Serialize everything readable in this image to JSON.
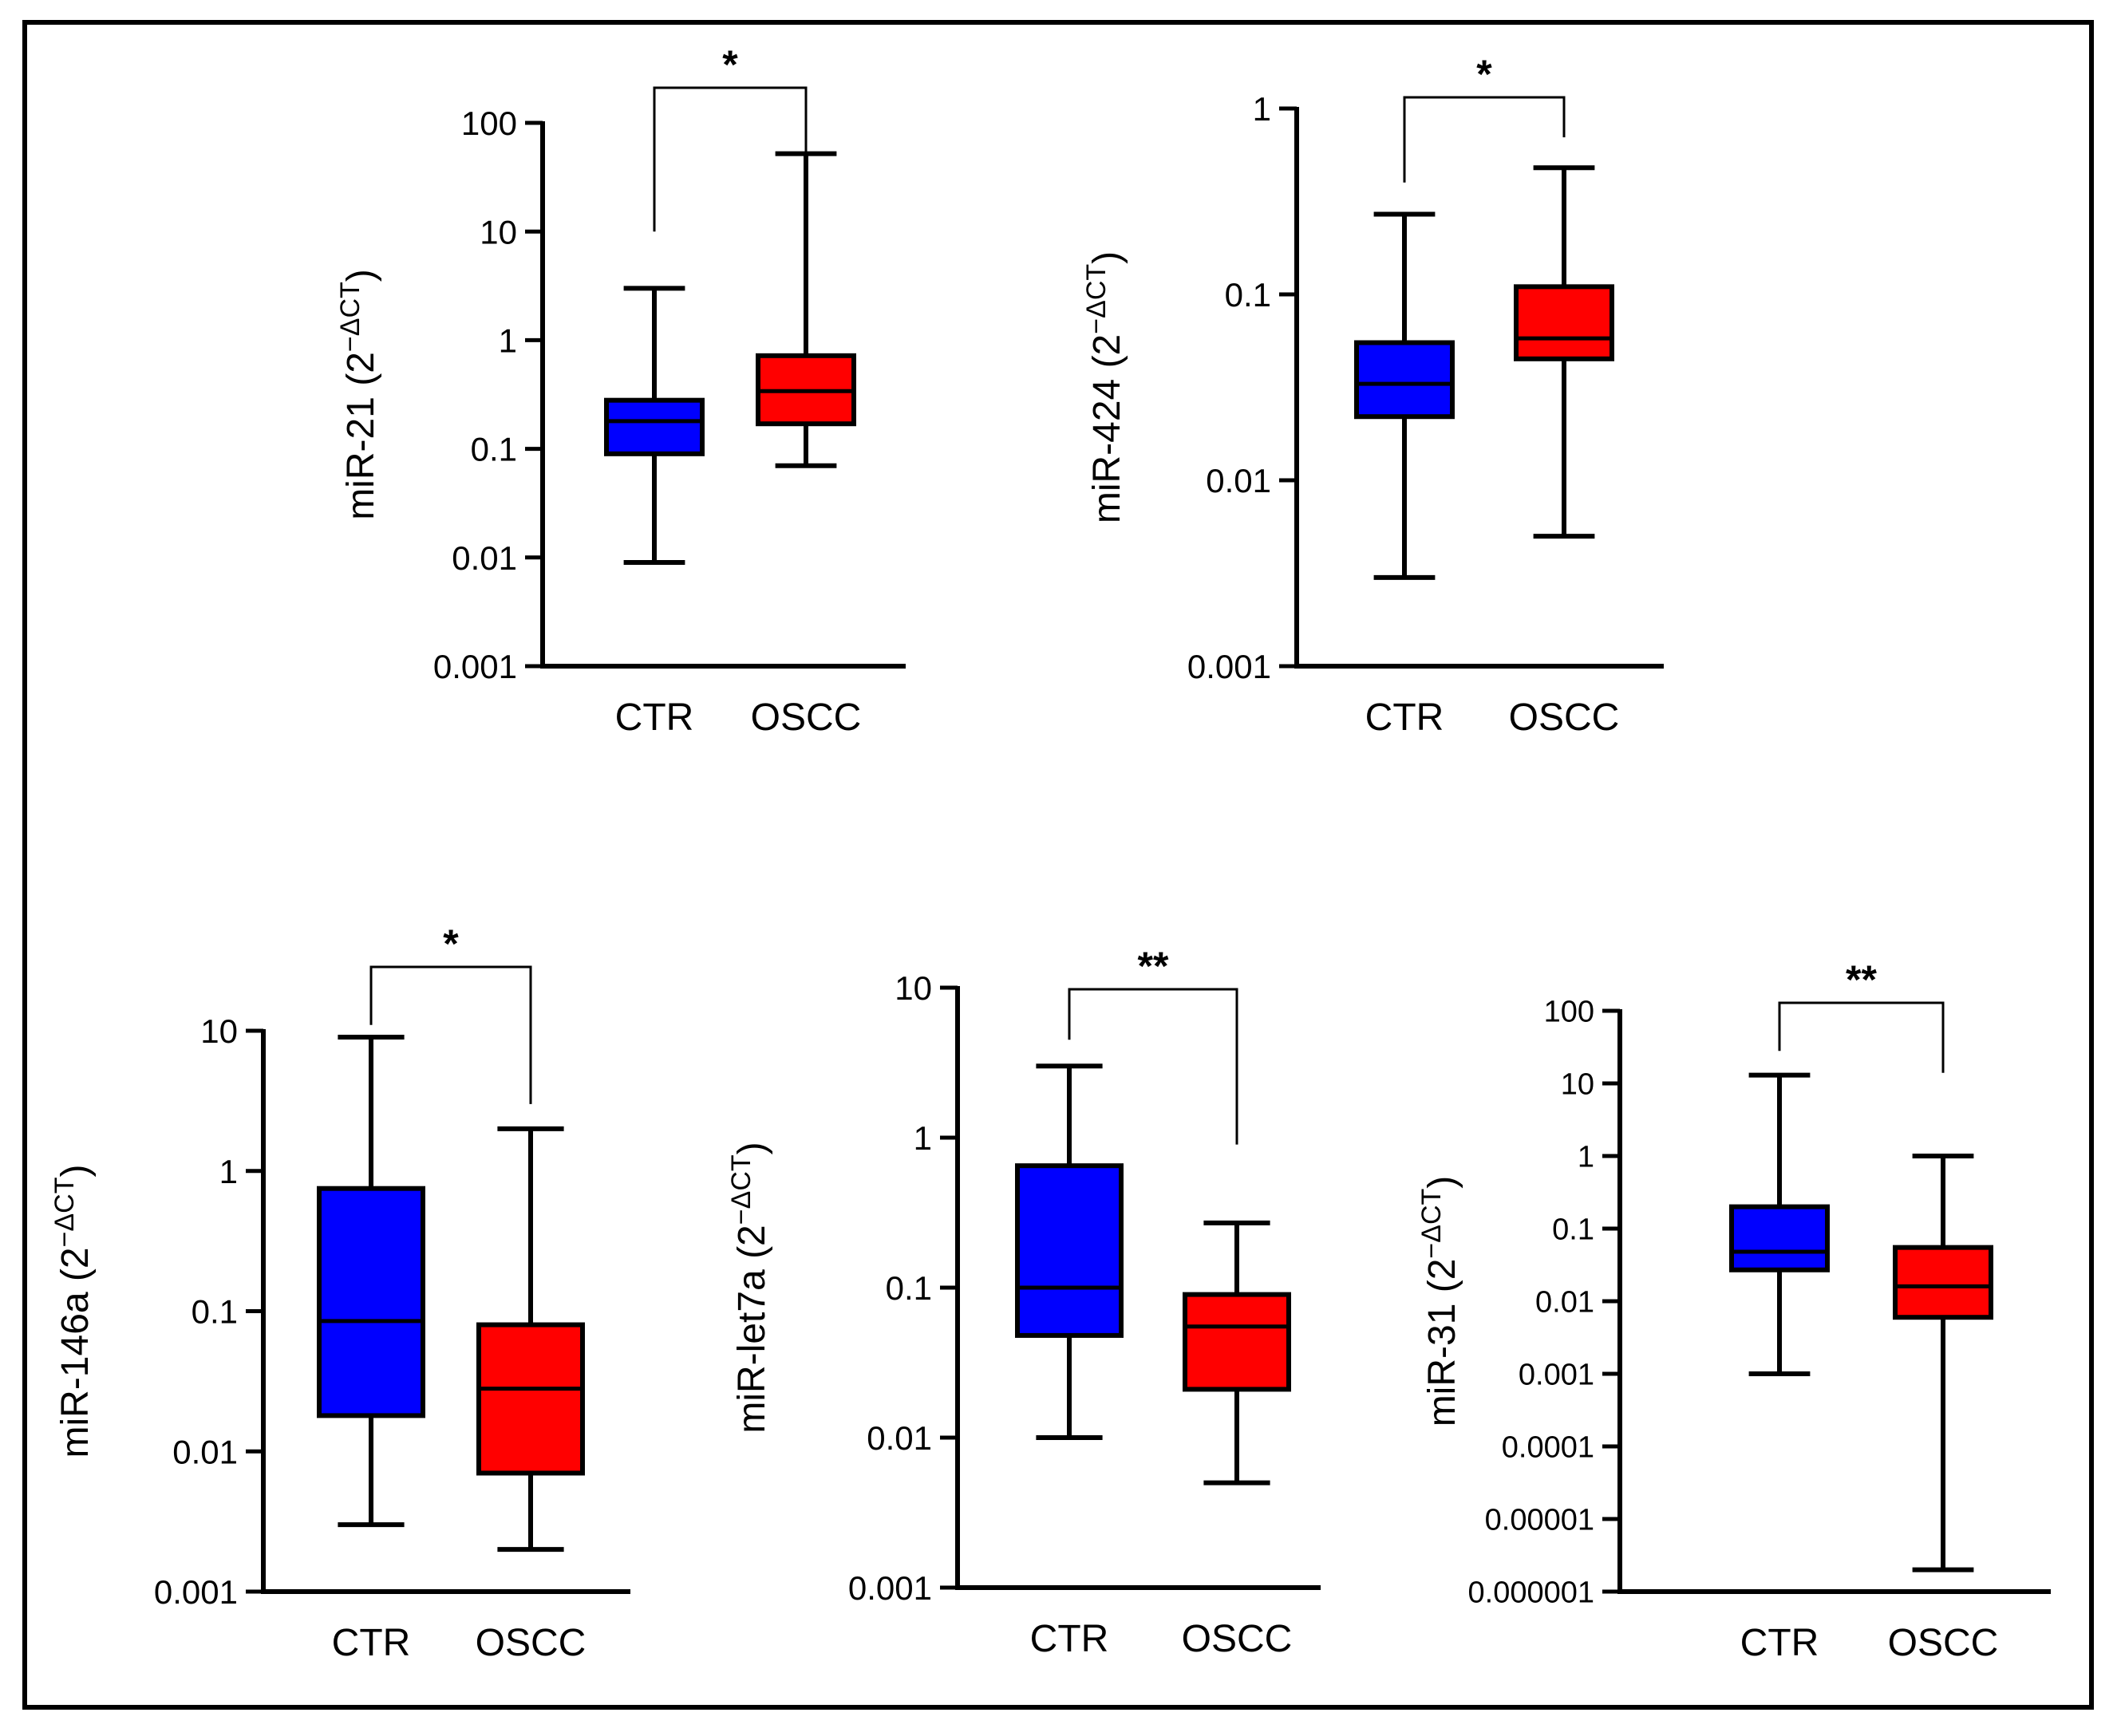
{
  "figure": {
    "groups": [
      "CTR",
      "OSCC"
    ],
    "colors": {
      "CTR": "#0000ff",
      "OSCC": "#ff0000",
      "axis": "#000000"
    },
    "ylabel_suffix": "(2",
    "ylabel_sup": "−ΔCT",
    "ylabel_close": ")"
  },
  "chart_data": [
    {
      "type": "boxplot",
      "scale": "log10",
      "ylabel_main": "miR-21",
      "ylim": [
        0.001,
        100
      ],
      "ticks": [
        0.001,
        0.01,
        0.1,
        1,
        10,
        100
      ],
      "tick_labels": [
        "0.001",
        "0.01",
        "0.1",
        "1",
        "10",
        "100"
      ],
      "categories": [
        "CTR",
        "OSCC"
      ],
      "boxes": [
        {
          "group": "CTR",
          "min": 0.009,
          "q1": 0.09,
          "median": 0.18,
          "q3": 0.28,
          "max": 3.0
        },
        {
          "group": "OSCC",
          "min": 0.07,
          "q1": 0.17,
          "median": 0.34,
          "q3": 0.72,
          "max": 52
        }
      ],
      "significance": "*",
      "bracket_bottom": [
        10,
        4
      ]
    },
    {
      "type": "boxplot",
      "scale": "log10",
      "ylabel_main": "miR-424",
      "ylim": [
        0.001,
        1
      ],
      "ticks": [
        0.001,
        0.01,
        0.1,
        1
      ],
      "tick_labels": [
        "0.001",
        "0.01",
        "0.1",
        "1"
      ],
      "categories": [
        "CTR",
        "OSCC"
      ],
      "boxes": [
        {
          "group": "CTR",
          "min": 0.003,
          "q1": 0.022,
          "median": 0.033,
          "q3": 0.055,
          "max": 0.27
        },
        {
          "group": "OSCC",
          "min": 0.005,
          "q1": 0.045,
          "median": 0.058,
          "q3": 0.11,
          "max": 0.48
        }
      ],
      "significance": "*",
      "bracket_bottom": [
        0.4,
        0.7
      ]
    },
    {
      "type": "boxplot",
      "scale": "log10",
      "ylabel_main": "miR-146a",
      "ylim": [
        0.001,
        10
      ],
      "ticks": [
        0.001,
        0.01,
        0.1,
        1,
        10
      ],
      "tick_labels": [
        "0.001",
        "0.01",
        "0.1",
        "1",
        "10"
      ],
      "categories": [
        "CTR",
        "OSCC"
      ],
      "boxes": [
        {
          "group": "CTR",
          "min": 0.003,
          "q1": 0.018,
          "median": 0.085,
          "q3": 0.75,
          "max": 9.0
        },
        {
          "group": "OSCC",
          "min": 0.002,
          "q1": 0.007,
          "median": 0.028,
          "q3": 0.08,
          "max": 2.0
        }
      ],
      "significance": "*",
      "bracket_bottom": [
        11,
        3.0
      ]
    },
    {
      "type": "boxplot",
      "scale": "log10",
      "ylabel_main": "miR-let7a",
      "ylim": [
        0.001,
        10
      ],
      "ticks": [
        0.001,
        0.01,
        0.1,
        1,
        10
      ],
      "tick_labels": [
        "0.001",
        "0.01",
        "0.1",
        "1",
        "10"
      ],
      "categories": [
        "CTR",
        "OSCC"
      ],
      "boxes": [
        {
          "group": "CTR",
          "min": 0.01,
          "q1": 0.048,
          "median": 0.1,
          "q3": 0.65,
          "max": 3.0
        },
        {
          "group": "OSCC",
          "min": 0.005,
          "q1": 0.021,
          "median": 0.055,
          "q3": 0.09,
          "max": 0.27
        }
      ],
      "significance": "**",
      "bracket_bottom": [
        4.5,
        0.9
      ]
    },
    {
      "type": "boxplot",
      "scale": "log10",
      "ylabel_main": "miR-31",
      "ylim": [
        1e-06,
        100
      ],
      "ticks": [
        1e-06,
        1e-05,
        0.0001,
        0.001,
        0.01,
        0.1,
        1,
        10,
        100
      ],
      "tick_labels": [
        "0.000001",
        "0.00001",
        "0.0001",
        "0.001",
        "0.01",
        "0.1",
        "1",
        "10",
        "100"
      ],
      "categories": [
        "CTR",
        "OSCC"
      ],
      "boxes": [
        {
          "group": "CTR",
          "min": 0.001,
          "q1": 0.027,
          "median": 0.048,
          "q3": 0.2,
          "max": 13
        },
        {
          "group": "OSCC",
          "min": 2e-06,
          "q1": 0.006,
          "median": 0.016,
          "q3": 0.055,
          "max": 1.0
        }
      ],
      "significance": "**",
      "bracket_bottom": [
        28,
        14
      ]
    }
  ]
}
